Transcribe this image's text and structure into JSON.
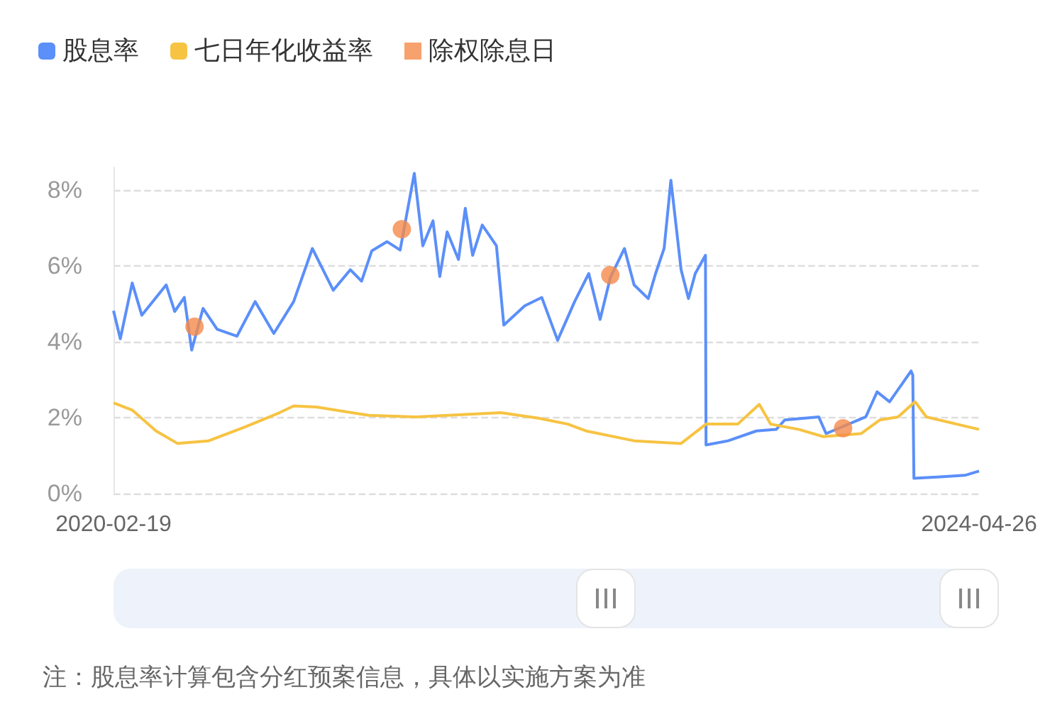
{
  "chart_data": {
    "type": "line",
    "x": [
      "2020-02-19",
      "2020-03-02",
      "2020-03-23",
      "2020-04-09",
      "2020-05-22",
      "2020-06-06",
      "2020-06-23",
      "2020-07-06",
      "2020-07-26",
      "2020-08-20",
      "2020-09-24",
      "2020-10-26",
      "2020-11-28",
      "2021-01-02",
      "2021-02-04",
      "2021-03-13",
      "2021-04-12",
      "2021-05-02",
      "2021-05-20",
      "2021-06-16",
      "2021-07-09",
      "2021-08-03",
      "2021-08-18",
      "2021-09-05",
      "2021-09-17",
      "2021-09-30",
      "2021-10-20",
      "2021-11-01",
      "2021-11-14",
      "2021-12-01",
      "2021-12-26",
      "2022-01-08",
      "2022-02-14",
      "2022-03-16",
      "2022-04-13",
      "2022-05-13",
      "2022-06-07",
      "2022-06-27",
      "2022-07-15",
      "2022-08-09",
      "2022-08-26",
      "2022-09-20",
      "2022-10-03",
      "2022-10-18",
      "2022-10-30",
      "2022-11-17",
      "2022-11-30",
      "2022-12-12",
      "2022-12-30",
      "2022-12-31",
      "2023-02-08",
      "2023-03-30",
      "2023-05-04",
      "2023-05-19",
      "2023-07-18",
      "2023-07-31",
      "2023-10-09",
      "2023-10-29",
      "2023-11-20",
      "2023-12-28",
      "2023-12-31",
      "2024-01-02",
      "2024-02-18",
      "2024-04-01",
      "2024-04-26"
    ],
    "series": [
      {
        "name": "股息率",
        "color": "#5b8ff9",
        "values": [
          4.82,
          4.08,
          5.55,
          4.7,
          5.5,
          4.8,
          5.17,
          3.78,
          4.88,
          4.33,
          4.15,
          5.06,
          4.22,
          5.06,
          6.46,
          5.36,
          5.9,
          5.6,
          6.4,
          6.64,
          6.42,
          8.44,
          6.53,
          7.19,
          5.72,
          6.9,
          6.17,
          7.52,
          6.28,
          7.08,
          6.53,
          4.44,
          4.95,
          5.17,
          4.04,
          5.06,
          5.8,
          4.59,
          5.69,
          6.46,
          5.5,
          5.14,
          5.8,
          6.46,
          8.26,
          5.9,
          5.14,
          5.8,
          6.28,
          1.28,
          1.39,
          1.65,
          1.69,
          1.94,
          2.02,
          1.58,
          2.02,
          2.68,
          2.42,
          3.23,
          3.12,
          0.4,
          0.44,
          0.48,
          0.59
        ]
      },
      {
        "name": "七日年化收益率",
        "color": "#f6c342",
        "x": [
          "2020-02-19",
          "2020-03-23",
          "2020-05-04",
          "2020-06-11",
          "2020-08-05",
          "2020-10-09",
          "2020-12-08",
          "2021-01-02",
          "2021-02-11",
          "2021-05-15",
          "2021-08-06",
          "2022-01-03",
          "2022-03-12",
          "2022-05-01",
          "2022-06-02",
          "2022-08-26",
          "2022-11-17",
          "2022-12-31",
          "2023-02-25",
          "2023-04-04",
          "2023-04-24",
          "2023-06-13",
          "2023-07-26",
          "2023-10-01",
          "2023-11-03",
          "2023-12-05",
          "2024-01-04",
          "2024-01-24",
          "2024-04-26"
        ],
        "values": [
          2.39,
          2.2,
          1.65,
          1.32,
          1.39,
          1.76,
          2.13,
          2.31,
          2.28,
          2.06,
          2.02,
          2.13,
          1.98,
          1.83,
          1.65,
          1.39,
          1.32,
          1.83,
          1.83,
          2.35,
          1.83,
          1.69,
          1.5,
          1.58,
          1.94,
          2.02,
          2.42,
          2.02,
          1.69
        ]
      },
      {
        "name": "除权除息日",
        "type": "scatter",
        "marker": "circle",
        "color": "#f5894a",
        "x": [
          "2020-07-11",
          "2021-07-12",
          "2022-07-15",
          "2023-08-30"
        ],
        "values": [
          4.4,
          6.97,
          5.76,
          1.72
        ]
      }
    ],
    "xlim": [
      "2020-02-19",
      "2024-04-26"
    ],
    "xticks": [
      {
        "value": "2020-02-19",
        "label": "2020-02-19"
      },
      {
        "value": "2024-04-26",
        "label": "2024-04-26"
      }
    ],
    "ylim": [
      0,
      8.6
    ],
    "yticks": [
      {
        "value": 0,
        "label": "0%"
      },
      {
        "value": 2,
        "label": "2%"
      },
      {
        "value": 4,
        "label": "4%"
      },
      {
        "value": 6,
        "label": "6%"
      },
      {
        "value": 8,
        "label": "8%"
      }
    ],
    "grid": "y",
    "legend": "top left",
    "marker": "none",
    "annotations": [
      "注：股息率计算包含分红预案信息，具体以实施方案为准"
    ]
  }
}
